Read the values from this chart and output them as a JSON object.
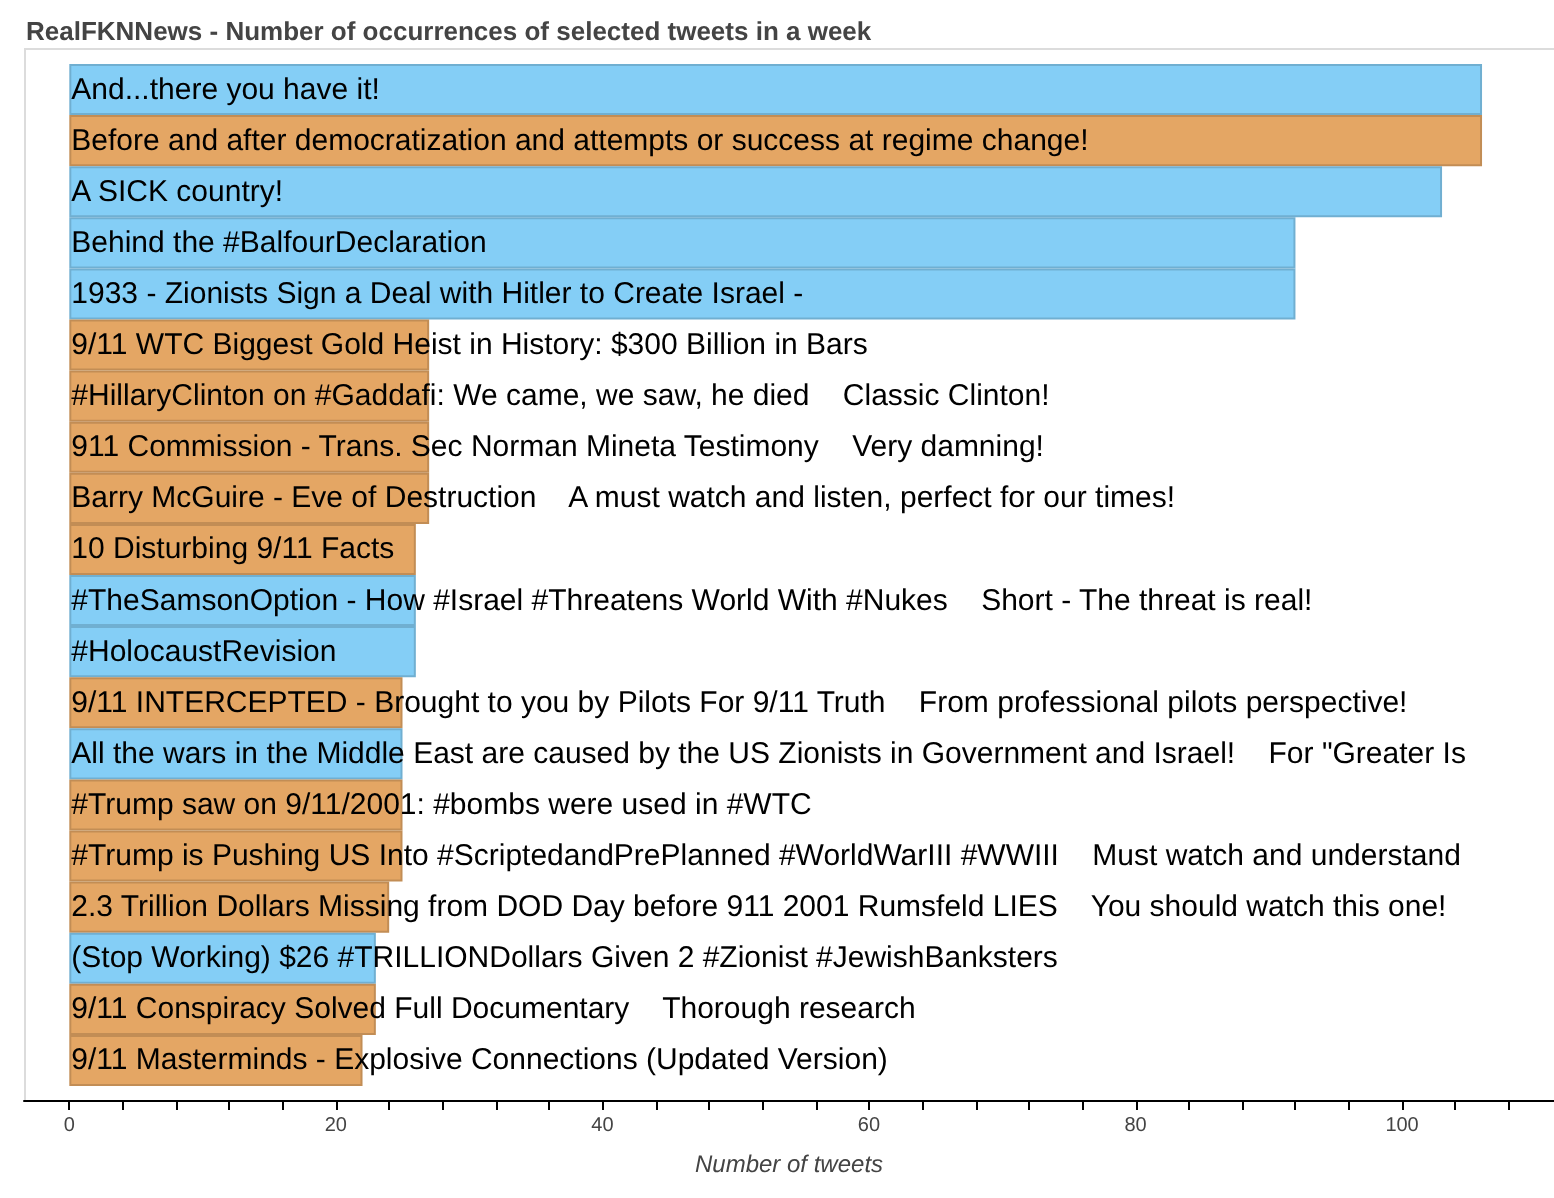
{
  "chart_data": {
    "type": "bar",
    "orientation": "horizontal",
    "title": "RealFKNNews - Number of occurrences of selected tweets in a week",
    "xlabel": "Number of tweets",
    "categories": [
      "And...there you have it!",
      "Before and after democratization and attempts or success at regime change!",
      "A SICK country!",
      "Behind the #BalfourDeclaration",
      "1933 - Zionists Sign a Deal with Hitler to Create Israel -",
      "9/11 WTC Biggest Gold Heist in History: $300 Billion in Bars",
      "#HillaryClinton on #Gaddafi: We came, we saw, he died    Classic Clinton!",
      "911 Commission - Trans. Sec Norman Mineta Testimony    Very damning!",
      "Barry McGuire - Eve of Destruction    A must watch and listen, perfect for our times!",
      "10 Disturbing 9/11 Facts",
      "#TheSamsonOption - How #Israel #Threatens World With #Nukes    Short - The threat is real!",
      "#HolocaustRevision",
      "9/11 INTERCEPTED - Brought to you by Pilots For 9/11 Truth    From professional pilots perspective!",
      "All the wars in the Middle East are caused by the US Zionists in Government and Israel!    For \"Greater Is",
      "#Trump saw on 9/11/2001: #bombs were used in #WTC",
      "#Trump is Pushing US Into #ScriptedandPrePlanned #WorldWarIII #WWIII    Must watch and understand",
      "2.3 Trillion Dollars Missing from DOD Day before 911 2001 Rumsfeld LIES    You should watch this one!",
      "(Stop Working) $26 #TRILLIONDollars Given 2 #Zionist #JewishBanksters",
      "9/11 Conspiracy Solved Full Documentary    Thorough research",
      "9/11 Masterminds - Explosive Connections (Updated Version)"
    ],
    "values": [
      106,
      106,
      103,
      92,
      92,
      27,
      27,
      27,
      27,
      26,
      26,
      26,
      25,
      25,
      25,
      25,
      24,
      23,
      23,
      22
    ],
    "colors": [
      "#84cef6",
      "#e4a664",
      "#84cef6",
      "#84cef6",
      "#84cef6",
      "#e4a664",
      "#e4a664",
      "#e4a664",
      "#e4a664",
      "#e4a664",
      "#84cef6",
      "#84cef6",
      "#e4a664",
      "#84cef6",
      "#e4a664",
      "#e4a664",
      "#e4a664",
      "#84cef6",
      "#e4a664",
      "#e4a664"
    ],
    "xlim": [
      -3.4,
      111.4
    ],
    "xticks": [
      0,
      {
        "value": 4,
        "label": null
      },
      {
        "value": 8,
        "label": null
      },
      {
        "value": 12,
        "label": null
      },
      {
        "value": 16,
        "label": null
      },
      20,
      {
        "value": 24,
        "label": null
      },
      {
        "value": 28,
        "label": null
      },
      {
        "value": 32,
        "label": null
      },
      {
        "value": 36,
        "label": null
      },
      40,
      {
        "value": 44,
        "label": null
      },
      {
        "value": 48,
        "label": null
      },
      {
        "value": 52,
        "label": null
      },
      {
        "value": 56,
        "label": null
      },
      60,
      {
        "value": 64,
        "label": null
      },
      {
        "value": 68,
        "label": null
      },
      {
        "value": 72,
        "label": null
      },
      {
        "value": 76,
        "label": null
      },
      80,
      {
        "value": 84,
        "label": null
      },
      {
        "value": 88,
        "label": null
      },
      {
        "value": 92,
        "label": null
      },
      {
        "value": 96,
        "label": null
      },
      100,
      {
        "value": 104,
        "label": null
      },
      {
        "value": 108,
        "label": null
      }
    ]
  }
}
